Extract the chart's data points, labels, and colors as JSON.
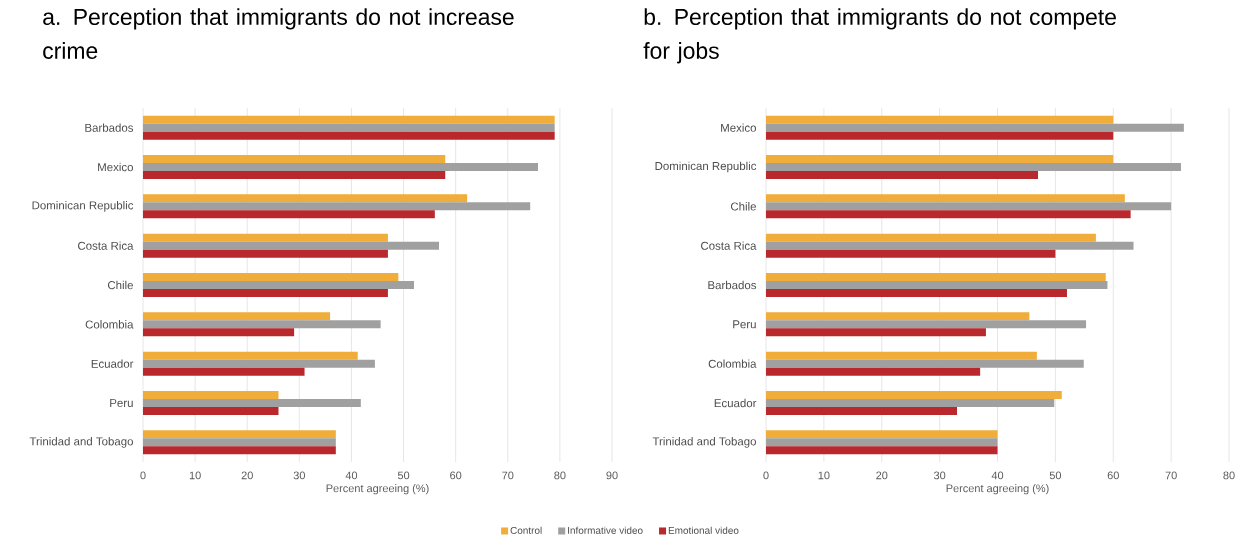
{
  "chart_data": [
    {
      "type": "bar",
      "orientation": "horizontal",
      "title": "a.  Perception that immigrants do not increase crime",
      "xlabel": "Percent agreeing (%)",
      "categories": [
        "Barbados",
        "Mexico",
        "Dominican Republic",
        "Costa Rica",
        "Chile",
        "Colombia",
        "Ecuador",
        "Peru",
        "Trinidad and Tobago"
      ],
      "series": [
        {
          "name": "Control",
          "color": "#f0ad3a",
          "values": [
            79,
            58,
            62.2,
            47,
            49,
            35.9,
            41.2,
            26,
            37
          ]
        },
        {
          "name": "Informative video",
          "color": "#a0a0a0",
          "values": [
            79,
            75.8,
            74.3,
            56.8,
            52,
            45.6,
            44.5,
            41.8,
            37
          ]
        },
        {
          "name": "Emotional video",
          "color": "#b8282d",
          "values": [
            79,
            58,
            56,
            47,
            47,
            29,
            31,
            26,
            37
          ]
        }
      ],
      "xlim": [
        0,
        90
      ],
      "xticks": [
        0,
        10,
        20,
        30,
        40,
        50,
        60,
        70,
        80,
        90
      ],
      "grid": "x",
      "legend": "bottom"
    },
    {
      "type": "bar",
      "orientation": "horizontal",
      "title": "b.  Perception that immigrants do not compete for jobs",
      "xlabel": "Percent agreeing (%)",
      "categories": [
        "Mexico",
        "Dominican Republic",
        "Chile",
        "Costa Rica",
        "Barbados",
        "Peru",
        "Colombia",
        "Ecuador",
        "Trinidad and Tobago"
      ],
      "series": [
        {
          "color": "#f0ad3a",
          "values": [
            60,
            60,
            62,
            57,
            58.7,
            45.5,
            46.8,
            51.1,
            40
          ]
        },
        {
          "color": "#a0a0a0",
          "values": [
            72.2,
            71.7,
            70,
            63.5,
            59,
            55.3,
            54.9,
            49.8,
            40
          ]
        },
        {
          "color": "#b8282d",
          "values": [
            60,
            47,
            63,
            50,
            52,
            38,
            37,
            33,
            40
          ]
        }
      ],
      "xlim": [
        0,
        80
      ],
      "xticks": [
        0,
        10,
        20,
        30,
        40,
        50,
        60,
        70,
        80
      ],
      "grid": "x"
    }
  ]
}
